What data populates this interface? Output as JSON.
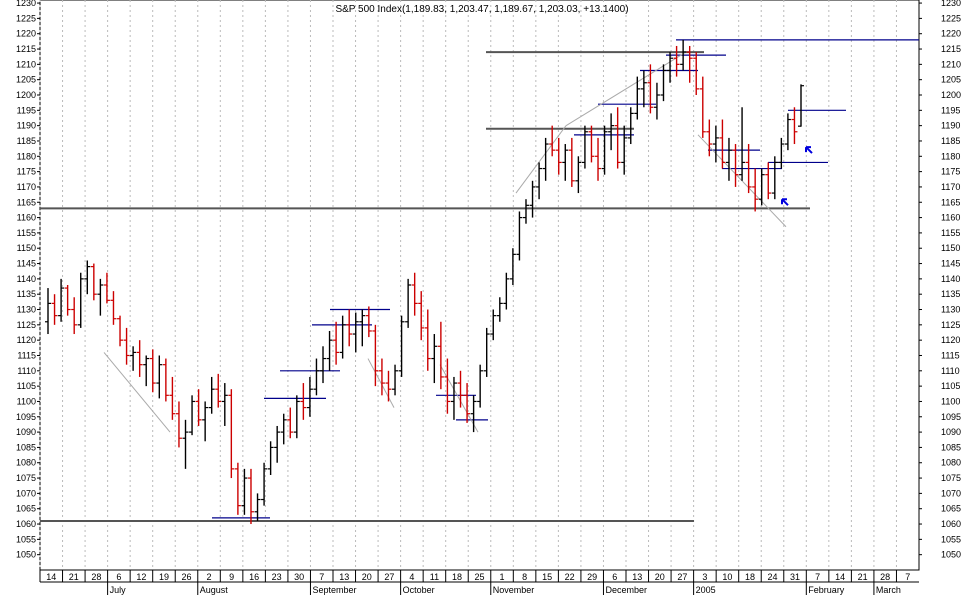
{
  "title": "S&P 500 Index(1,189.83, 1,203.47, 1,189.67, 1,203.03, +13.1400)",
  "chart_data": {
    "type": "ohlc-bar",
    "title": "S&P 500 Index(1,189.83, 1,203.47, 1,189.67, 1,203.03, +13.1400)",
    "ylim": [
      1045,
      1231
    ],
    "y_ticks": [
      1050,
      1055,
      1060,
      1065,
      1070,
      1075,
      1080,
      1085,
      1090,
      1095,
      1100,
      1105,
      1110,
      1115,
      1120,
      1125,
      1130,
      1135,
      1140,
      1145,
      1150,
      1155,
      1160,
      1165,
      1170,
      1175,
      1180,
      1185,
      1190,
      1195,
      1200,
      1205,
      1210,
      1215,
      1220,
      1225,
      1230
    ],
    "x_day_labels": [
      "14",
      "21",
      "28",
      "6",
      "12",
      "19",
      "26",
      "2",
      "9",
      "16",
      "23",
      "30",
      "7",
      "13",
      "20",
      "27",
      "4",
      "11",
      "18",
      "25",
      "1",
      "8",
      "15",
      "22",
      "29",
      "6",
      "13",
      "20",
      "27",
      "3",
      "10",
      "18",
      "24",
      "31",
      "7",
      "14",
      "21",
      "28",
      "7"
    ],
    "x_month_labels": [
      "July",
      "August",
      "September",
      "October",
      "November",
      "December",
      "2005",
      "February",
      "March"
    ],
    "grid": "vertical dotted",
    "colors": {
      "up": "#000000",
      "down": "#cc0000",
      "support": "#555555",
      "target": "#00008b",
      "trend": "#aaaaaa",
      "arrow": "#0000dd"
    },
    "series": [
      {
        "values": [
          [
            1126,
            1137,
            1122,
            1132
          ],
          [
            1132,
            1135,
            1125,
            1128
          ],
          [
            1128,
            1140,
            1126,
            1137
          ],
          [
            1137,
            1138,
            1128,
            1130
          ],
          [
            1130,
            1134,
            1122,
            1125
          ],
          [
            1125,
            1142,
            1124,
            1140
          ],
          [
            1140,
            1146,
            1135,
            1144
          ],
          [
            1144,
            1145,
            1133,
            1135
          ],
          [
            1135,
            1140,
            1128,
            1138
          ],
          [
            1138,
            1142,
            1132,
            1133
          ],
          [
            1133,
            1136,
            1125,
            1127
          ],
          [
            1127,
            1128,
            1118,
            1120
          ],
          [
            1120,
            1124,
            1112,
            1115
          ],
          [
            1115,
            1118,
            1110,
            1116
          ],
          [
            1116,
            1120,
            1108,
            1112
          ],
          [
            1112,
            1115,
            1105,
            1114
          ],
          [
            1114,
            1117,
            1103,
            1106
          ],
          [
            1106,
            1115,
            1101,
            1112
          ],
          [
            1112,
            1114,
            1100,
            1102
          ],
          [
            1102,
            1108,
            1094,
            1096
          ],
          [
            1096,
            1100,
            1085,
            1088
          ],
          [
            1088,
            1094,
            1078,
            1090
          ],
          [
            1090,
            1102,
            1089,
            1100
          ],
          [
            1100,
            1104,
            1092,
            1094
          ],
          [
            1094,
            1100,
            1087,
            1098
          ],
          [
            1098,
            1108,
            1096,
            1104
          ],
          [
            1104,
            1109,
            1098,
            1100
          ],
          [
            1100,
            1106,
            1092,
            1102
          ],
          [
            1102,
            1104,
            1075,
            1078
          ],
          [
            1078,
            1080,
            1063,
            1066
          ],
          [
            1066,
            1078,
            1063,
            1075
          ],
          [
            1075,
            1078,
            1060,
            1064
          ],
          [
            1064,
            1070,
            1061,
            1068
          ],
          [
            1068,
            1080,
            1066,
            1078
          ],
          [
            1078,
            1087,
            1076,
            1085
          ],
          [
            1085,
            1092,
            1080,
            1090
          ],
          [
            1090,
            1096,
            1086,
            1094
          ],
          [
            1094,
            1098,
            1088,
            1090
          ],
          [
            1090,
            1102,
            1088,
            1100
          ],
          [
            1100,
            1106,
            1094,
            1098
          ],
          [
            1098,
            1108,
            1095,
            1104
          ],
          [
            1104,
            1114,
            1102,
            1110
          ],
          [
            1110,
            1118,
            1106,
            1114
          ],
          [
            1114,
            1123,
            1110,
            1120
          ],
          [
            1120,
            1126,
            1112,
            1116
          ],
          [
            1116,
            1128,
            1114,
            1125
          ],
          [
            1125,
            1130,
            1118,
            1122
          ],
          [
            1122,
            1129,
            1116,
            1126
          ],
          [
            1126,
            1130,
            1118,
            1128
          ],
          [
            1128,
            1131,
            1121,
            1123
          ],
          [
            1123,
            1125,
            1105,
            1110
          ],
          [
            1110,
            1114,
            1102,
            1106
          ],
          [
            1106,
            1110,
            1100,
            1104
          ],
          [
            1104,
            1112,
            1102,
            1110
          ],
          [
            1110,
            1128,
            1108,
            1126
          ],
          [
            1126,
            1140,
            1124,
            1138
          ],
          [
            1138,
            1142,
            1128,
            1132
          ],
          [
            1132,
            1136,
            1120,
            1124
          ],
          [
            1124,
            1130,
            1110,
            1114
          ],
          [
            1114,
            1122,
            1106,
            1118
          ],
          [
            1118,
            1126,
            1104,
            1108
          ],
          [
            1108,
            1114,
            1096,
            1100
          ],
          [
            1100,
            1108,
            1094,
            1106
          ],
          [
            1106,
            1110,
            1098,
            1102
          ],
          [
            1102,
            1106,
            1093,
            1096
          ],
          [
            1096,
            1102,
            1090,
            1100
          ],
          [
            1100,
            1112,
            1098,
            1110
          ],
          [
            1110,
            1124,
            1108,
            1122
          ],
          [
            1122,
            1130,
            1120,
            1128
          ],
          [
            1128,
            1134,
            1126,
            1132
          ],
          [
            1132,
            1142,
            1130,
            1140
          ],
          [
            1140,
            1150,
            1138,
            1148
          ],
          [
            1148,
            1162,
            1146,
            1160
          ],
          [
            1160,
            1166,
            1158,
            1164
          ],
          [
            1164,
            1172,
            1160,
            1170
          ],
          [
            1170,
            1178,
            1166,
            1176
          ],
          [
            1176,
            1186,
            1172,
            1184
          ],
          [
            1184,
            1190,
            1180,
            1182
          ],
          [
            1182,
            1186,
            1174,
            1178
          ],
          [
            1178,
            1184,
            1172,
            1182
          ],
          [
            1182,
            1186,
            1170,
            1172
          ],
          [
            1172,
            1180,
            1168,
            1178
          ],
          [
            1178,
            1190,
            1176,
            1188
          ],
          [
            1188,
            1190,
            1178,
            1180
          ],
          [
            1180,
            1186,
            1172,
            1176
          ],
          [
            1176,
            1190,
            1174,
            1188
          ],
          [
            1188,
            1194,
            1182,
            1190
          ],
          [
            1190,
            1196,
            1176,
            1178
          ],
          [
            1178,
            1190,
            1174,
            1186
          ],
          [
            1186,
            1196,
            1184,
            1194
          ],
          [
            1194,
            1206,
            1192,
            1202
          ],
          [
            1202,
            1208,
            1196,
            1204
          ],
          [
            1204,
            1210,
            1194,
            1196
          ],
          [
            1196,
            1204,
            1192,
            1200
          ],
          [
            1200,
            1210,
            1198,
            1208
          ],
          [
            1208,
            1214,
            1204,
            1212
          ],
          [
            1212,
            1216,
            1206,
            1210
          ],
          [
            1210,
            1218,
            1208,
            1214
          ],
          [
            1214,
            1216,
            1204,
            1212
          ],
          [
            1212,
            1214,
            1200,
            1202
          ],
          [
            1202,
            1206,
            1186,
            1188
          ],
          [
            1188,
            1192,
            1180,
            1184
          ],
          [
            1184,
            1190,
            1178,
            1186
          ],
          [
            1186,
            1192,
            1176,
            1178
          ],
          [
            1178,
            1186,
            1172,
            1182
          ],
          [
            1182,
            1184,
            1170,
            1174
          ],
          [
            1174,
            1196,
            1172,
            1178
          ],
          [
            1178,
            1184,
            1168,
            1170
          ],
          [
            1170,
            1176,
            1162,
            1166
          ],
          [
            1166,
            1176,
            1164,
            1174
          ],
          [
            1174,
            1178,
            1166,
            1168
          ],
          [
            1168,
            1180,
            1166,
            1178
          ],
          [
            1178,
            1186,
            1176,
            1184
          ],
          [
            1184,
            1194,
            1182,
            1192
          ],
          [
            1192,
            1196,
            1184,
            1188
          ],
          [
            1189.83,
            1203.47,
            1189.67,
            1203.03
          ]
        ]
      }
    ],
    "support_lines": [
      1163,
      1061
    ],
    "resistance_lines": [
      1189,
      1214
    ],
    "target_line": 1218
  }
}
